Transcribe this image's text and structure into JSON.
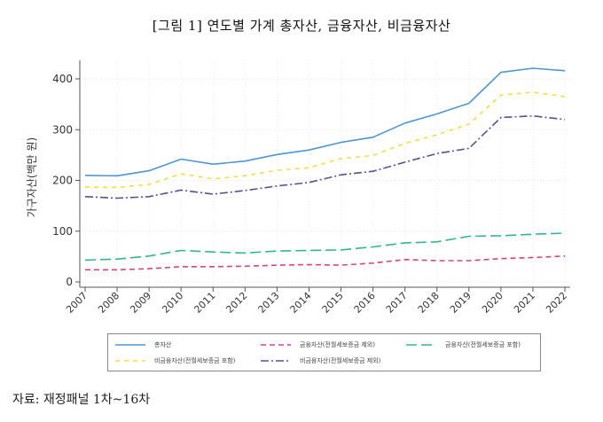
{
  "figure": {
    "title": "[그림 1] 연도별 가계 총자산, 금융자산, 비금융자산",
    "source": "자료: 재정패널 1차~16차"
  },
  "chart_data": {
    "type": "line",
    "title": "[그림 1] 연도별 가계 총자산, 금융자산, 비금융자산",
    "xlabel": "",
    "ylabel": "가구자산(백만 원)",
    "x": [
      2007,
      2008,
      2009,
      2010,
      2011,
      2012,
      2013,
      2014,
      2015,
      2016,
      2017,
      2018,
      2019,
      2020,
      2021,
      2022
    ],
    "x_tick_labels": [
      "2007",
      "2008",
      "2009",
      "2010",
      "2011",
      "2012",
      "2013",
      "2014",
      "2015",
      "2016",
      "2017",
      "2018",
      "2019",
      "2020",
      "2021",
      "2022"
    ],
    "y_ticks": [
      0,
      100,
      200,
      300,
      400
    ],
    "y_tick_labels": [
      "0",
      "100",
      "200",
      "300",
      "400"
    ],
    "ylim": [
      0,
      420
    ],
    "xlim": [
      2007,
      2022
    ],
    "grid": true,
    "legend_position": "bottom",
    "series": [
      {
        "name": "총자산",
        "color": "#4c97d6",
        "style": "solid",
        "values": [
          210,
          209,
          219,
          242,
          232,
          238,
          251,
          260,
          275,
          285,
          313,
          331,
          352,
          413,
          421,
          416
        ]
      },
      {
        "name": "금융자산(전월세보증금 제외)",
        "color": "#d6457a",
        "style": "dash",
        "values": [
          24,
          24,
          26,
          30,
          30,
          31,
          33,
          34,
          33,
          37,
          44,
          42,
          42,
          46,
          48,
          51
        ]
      },
      {
        "name": "금융자산(전월세보증금 포함)",
        "color": "#2eb88f",
        "style": "longdash",
        "values": [
          43,
          45,
          51,
          62,
          59,
          57,
          61,
          62,
          63,
          69,
          77,
          79,
          90,
          91,
          94,
          96
        ]
      },
      {
        "name": "비금융자산(전월세보증금 포함)",
        "color": "#f2df45",
        "style": "shortdash",
        "values": [
          187,
          186,
          192,
          213,
          203,
          209,
          220,
          225,
          243,
          249,
          273,
          290,
          311,
          368,
          374,
          365
        ]
      },
      {
        "name": "비금융자산(전월세보증금 제외)",
        "color": "#5b4e94",
        "style": "dashdot",
        "values": [
          168,
          165,
          168,
          181,
          173,
          180,
          189,
          196,
          211,
          218,
          236,
          253,
          263,
          324,
          327,
          320
        ]
      }
    ]
  }
}
